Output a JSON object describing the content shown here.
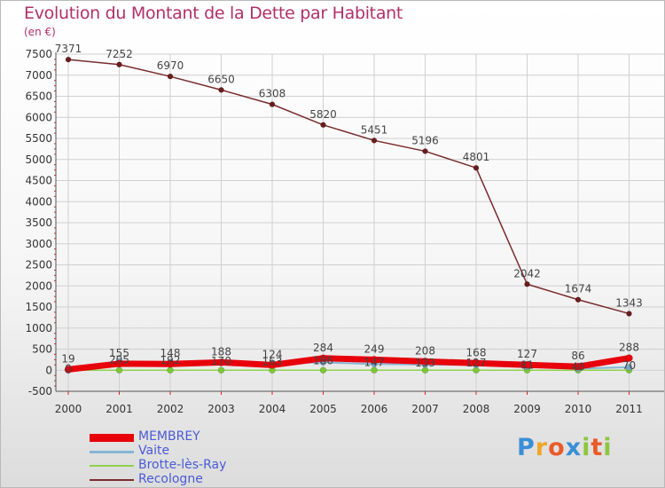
{
  "title": "Evolution du Montant de la Dette par Habitant",
  "unit_label": "(en €)",
  "logo": {
    "letters": [
      "P",
      "r",
      "o",
      "x",
      "i",
      "t",
      "i"
    ],
    "colors": [
      "#3a8fd6",
      "#f0a52a",
      "#e95b2a",
      "#3a8fd6",
      "#8cc63f",
      "#e95b2a",
      "#8cc63f"
    ]
  },
  "chart_data": {
    "type": "line",
    "title": "Evolution du Montant de la Dette par Habitant",
    "ylabel": "(en €)",
    "xlabel": "",
    "ylim": [
      -500,
      7500
    ],
    "y_ticks": [
      "-500",
      "0",
      "500",
      "1000",
      "1500",
      "2000",
      "2500",
      "3000",
      "3500",
      "4000",
      "4500",
      "5000",
      "5500",
      "6000",
      "6500",
      "7000",
      "7500"
    ],
    "categories": [
      "2000",
      "2001",
      "2002",
      "2003",
      "2004",
      "2005",
      "2006",
      "2007",
      "2008",
      "2009",
      "2010",
      "2011"
    ],
    "series": [
      {
        "name": "MEMBREY",
        "color": "#e8000b",
        "values": [
          19,
          155,
          148,
          188,
          124,
          284,
          249,
          208,
          168,
          127,
          86,
          288
        ],
        "labels": [
          "19",
          "155",
          "148",
          "188",
          "124",
          "284",
          "249",
          "208",
          "168",
          "127",
          "86",
          "288"
        ]
      },
      {
        "name": "Vaite",
        "color": "#86b6d4",
        "values": [
          0,
          205,
          192,
          170,
          163,
          186,
          147,
          133,
          127,
          81,
          40,
          70
        ],
        "labels": [
          "0",
          "205",
          "192",
          "170",
          "163",
          "186",
          "147",
          "133",
          "127",
          "81",
          "40",
          "70"
        ]
      },
      {
        "name": "Brotte-lès-Ray",
        "color": "#8fd14f",
        "values": [
          0,
          0,
          0,
          0,
          0,
          0,
          0,
          0,
          0,
          0,
          0,
          0
        ],
        "labels": [
          "",
          "",
          "",
          "",
          "",
          "",
          "",
          "",
          "",
          "",
          "",
          ""
        ]
      },
      {
        "name": "Recologne",
        "color": "#7a2b2b",
        "values": [
          7371,
          7252,
          6970,
          6650,
          6308,
          5820,
          5451,
          5196,
          4801,
          2042,
          1674,
          1343
        ],
        "labels": [
          "7371",
          "7252",
          "6970",
          "6650",
          "6308",
          "5820",
          "5451",
          "5196",
          "4801",
          "2042",
          "1674",
          "1343"
        ]
      }
    ]
  }
}
